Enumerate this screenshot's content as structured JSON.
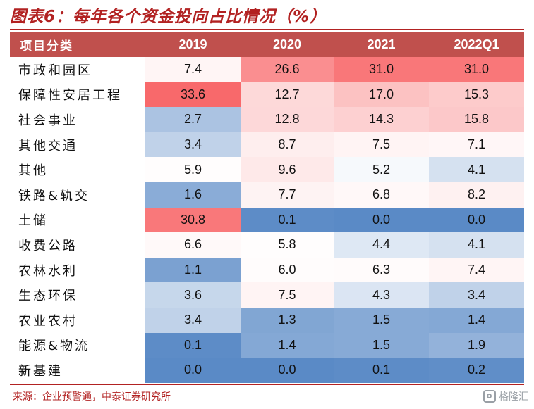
{
  "title": "图表6：每年各个资金投向占比情况（%）",
  "table": {
    "headers": [
      "项目分类",
      "2019",
      "2020",
      "2021",
      "2022Q1"
    ],
    "rows": [
      {
        "label": "市政和园区",
        "values": [
          "7.4",
          "26.6",
          "31.0",
          "31.0"
        ]
      },
      {
        "label": "保障性安居工程",
        "values": [
          "33.6",
          "12.7",
          "17.0",
          "15.3"
        ]
      },
      {
        "label": "社会事业",
        "values": [
          "2.7",
          "12.8",
          "14.3",
          "15.8"
        ]
      },
      {
        "label": "其他交通",
        "values": [
          "3.4",
          "8.7",
          "7.5",
          "7.1"
        ]
      },
      {
        "label": "其他",
        "values": [
          "5.9",
          "9.6",
          "5.2",
          "4.1"
        ]
      },
      {
        "label": "铁路&轨交",
        "values": [
          "1.6",
          "7.7",
          "6.8",
          "8.2"
        ]
      },
      {
        "label": "土储",
        "values": [
          "30.8",
          "0.1",
          "0.0",
          "0.0"
        ]
      },
      {
        "label": "收费公路",
        "values": [
          "6.6",
          "5.8",
          "4.4",
          "4.1"
        ]
      },
      {
        "label": "农林水利",
        "values": [
          "1.1",
          "6.0",
          "6.3",
          "7.4"
        ]
      },
      {
        "label": "生态环保",
        "values": [
          "3.6",
          "7.5",
          "4.3",
          "3.4"
        ]
      },
      {
        "label": "农业农村",
        "values": [
          "3.4",
          "1.3",
          "1.5",
          "1.4"
        ]
      },
      {
        "label": "能源&物流",
        "values": [
          "0.1",
          "1.4",
          "1.5",
          "1.9"
        ]
      },
      {
        "label": "新基建",
        "values": [
          "0.0",
          "0.0",
          "0.1",
          "0.2"
        ]
      }
    ]
  },
  "heat_colors": {
    "high": "#f8696b",
    "mid": "#ffffff",
    "low": "#5a8ac6"
  },
  "source": "来源：企业预警通，中泰证券研究所",
  "watermark": {
    "icon": "gelonghui-logo-icon",
    "text": "格隆汇"
  }
}
